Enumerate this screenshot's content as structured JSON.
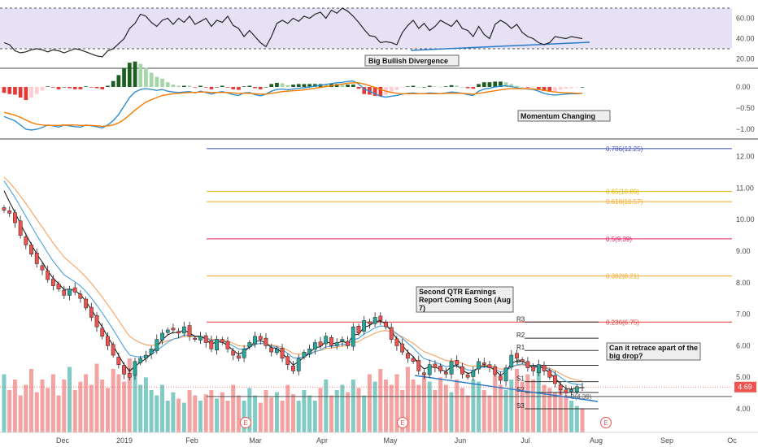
{
  "chart_data": {
    "type": "line",
    "x_axis": {
      "labels": [
        "Dec",
        "2019",
        "Feb",
        "Mar",
        "Apr",
        "May",
        "Jun",
        "Jul",
        "Aug",
        "Sep",
        "Oc"
      ]
    },
    "colors": {
      "up": "#26a69a",
      "down": "#ef5350",
      "rsi_band": "#e7e1f6",
      "rsi_line": "#222222",
      "macd_line": "#2f8fd1",
      "signal_line": "#f57c00",
      "hist_pos_strong": "#1b5e20",
      "hist_pos_weak": "#a5d6a7",
      "hist_neg_strong": "#e53935",
      "hist_neg_weak": "#ffcdd2",
      "ma_fast": "#111111",
      "ma_mid": "#4aa3df",
      "ma_slow": "#f4a261",
      "divergence_line": "#2979c9",
      "price_tag": "#ef5350"
    },
    "rsi_pane": {
      "ticks": [
        "60.00",
        "40.00",
        "20.00"
      ],
      "upper_band": 70,
      "lower_band": 30,
      "values": [
        36,
        34,
        28,
        26,
        27,
        29,
        30,
        29,
        27,
        29,
        28,
        26,
        28,
        30,
        29,
        27,
        25,
        23,
        22,
        28,
        30,
        35,
        40,
        50,
        55,
        64,
        62,
        56,
        52,
        58,
        60,
        54,
        60,
        56,
        62,
        54,
        57,
        60,
        52,
        58,
        56,
        62,
        53,
        50,
        42,
        48,
        42,
        36,
        32,
        42,
        55,
        58,
        55,
        60,
        57,
        62,
        60,
        64,
        66,
        60,
        68,
        65,
        70,
        67,
        62,
        56,
        49,
        43,
        42,
        36,
        37,
        36,
        34,
        46,
        53,
        58,
        50,
        55,
        48,
        52,
        58,
        55,
        52,
        58,
        50,
        48,
        42,
        52,
        44,
        40,
        54,
        58,
        55,
        50,
        54,
        46,
        42,
        40,
        36,
        34,
        36,
        42,
        41,
        40,
        42,
        41,
        40
      ]
    },
    "macd_pane": {
      "ticks": [
        "0.00",
        "−0.50",
        "−1.00"
      ],
      "macd": [
        -0.7,
        -0.75,
        -0.8,
        -0.9,
        -1.0,
        -1.02,
        -1.0,
        -0.96,
        -0.9,
        -0.92,
        -0.95,
        -0.9,
        -0.92,
        -0.94,
        -0.95,
        -0.9,
        -0.92,
        -0.94,
        -0.97,
        -0.9,
        -0.8,
        -0.65,
        -0.45,
        -0.25,
        -0.12,
        -0.06,
        -0.04,
        -0.06,
        -0.08,
        -0.06,
        -0.1,
        -0.12,
        -0.13,
        -0.12,
        -0.11,
        -0.14,
        -0.1,
        -0.13,
        -0.17,
        -0.13,
        -0.11,
        -0.14,
        -0.18,
        -0.2,
        -0.14,
        -0.13,
        -0.18,
        -0.21,
        -0.17,
        -0.1,
        -0.06,
        -0.05,
        -0.07,
        -0.05,
        -0.03,
        -0.02,
        -0.0,
        0.02,
        0.04,
        0.06,
        0.08,
        0.1,
        0.11,
        0.13,
        0.14,
        0.07,
        -0.05,
        -0.1,
        -0.16,
        -0.22,
        -0.24,
        -0.22,
        -0.2,
        -0.17,
        -0.15,
        -0.14,
        -0.16,
        -0.16,
        -0.14,
        -0.15,
        -0.16,
        -0.14,
        -0.12,
        -0.13,
        -0.15,
        -0.18,
        -0.2,
        -0.1,
        -0.05,
        -0.03,
        -0.0,
        0.02,
        0.03,
        0.01,
        -0.02,
        -0.04,
        -0.05,
        -0.06,
        -0.1,
        -0.15,
        -0.18,
        -0.19,
        -0.18,
        -0.17,
        -0.16,
        -0.16,
        -0.15
      ],
      "signal": [
        -0.6,
        -0.63,
        -0.67,
        -0.72,
        -0.78,
        -0.84,
        -0.88,
        -0.9,
        -0.91,
        -0.91,
        -0.91,
        -0.9,
        -0.9,
        -0.9,
        -0.91,
        -0.91,
        -0.91,
        -0.92,
        -0.93,
        -0.92,
        -0.9,
        -0.85,
        -0.77,
        -0.66,
        -0.55,
        -0.45,
        -0.36,
        -0.3,
        -0.25,
        -0.2,
        -0.18,
        -0.16,
        -0.15,
        -0.14,
        -0.13,
        -0.13,
        -0.12,
        -0.12,
        -0.13,
        -0.13,
        -0.13,
        -0.13,
        -0.14,
        -0.15,
        -0.15,
        -0.15,
        -0.16,
        -0.17,
        -0.17,
        -0.15,
        -0.13,
        -0.11,
        -0.1,
        -0.09,
        -0.08,
        -0.07,
        -0.05,
        -0.03,
        -0.01,
        0.01,
        0.03,
        0.05,
        0.07,
        0.09,
        0.1,
        0.1,
        0.07,
        0.03,
        -0.01,
        -0.06,
        -0.1,
        -0.13,
        -0.15,
        -0.16,
        -0.16,
        -0.16,
        -0.16,
        -0.16,
        -0.16,
        -0.16,
        -0.16,
        -0.15,
        -0.15,
        -0.15,
        -0.15,
        -0.16,
        -0.17,
        -0.15,
        -0.13,
        -0.11,
        -0.09,
        -0.07,
        -0.05,
        -0.04,
        -0.04,
        -0.04,
        -0.04,
        -0.05,
        -0.06,
        -0.08,
        -0.1,
        -0.12,
        -0.13,
        -0.14,
        -0.14,
        -0.15,
        -0.15
      ]
    },
    "price_pane": {
      "ticks": [
        "12.00",
        "11.00",
        "10.00",
        "9.00",
        "8.00",
        "7.00",
        "6.00",
        "5.00",
        "4.00"
      ],
      "last_price_label": "4.69",
      "close": [
        10.3,
        10.2,
        9.9,
        9.5,
        9.2,
        8.9,
        8.6,
        8.4,
        8.1,
        7.9,
        7.8,
        7.6,
        7.8,
        7.7,
        7.5,
        7.2,
        6.9,
        6.6,
        6.3,
        6.0,
        5.7,
        5.4,
        5.1,
        5.0,
        5.5,
        5.6,
        5.7,
        5.9,
        6.2,
        6.4,
        6.5,
        6.5,
        6.4,
        6.6,
        6.3,
        6.2,
        6.3,
        6.1,
        5.9,
        6.2,
        6.1,
        5.9,
        5.7,
        5.6,
        5.9,
        6.1,
        6.3,
        6.2,
        6.0,
        5.8,
        5.9,
        5.6,
        5.4,
        5.2,
        5.6,
        5.8,
        5.9,
        6.1,
        6.0,
        6.3,
        6.0,
        6.1,
        6.2,
        6.0,
        6.6,
        6.4,
        6.8,
        6.7,
        6.9,
        6.8,
        6.6,
        6.2,
        6.0,
        5.8,
        5.6,
        5.5,
        5.2,
        5.1,
        5.4,
        5.3,
        5.2,
        5.1,
        5.5,
        5.4,
        5.1,
        5.0,
        5.2,
        5.5,
        5.4,
        5.3,
        5.1,
        4.9,
        5.3,
        5.7,
        5.6,
        5.5,
        5.3,
        5.2,
        5.4,
        5.2,
        5.0,
        4.8,
        4.6,
        4.5,
        4.6,
        4.7,
        4.69
      ],
      "volume": [
        0.55,
        0.4,
        0.5,
        0.35,
        0.45,
        0.6,
        0.38,
        0.5,
        0.42,
        0.55,
        0.35,
        0.5,
        0.62,
        0.4,
        0.48,
        0.55,
        0.45,
        0.65,
        0.5,
        0.42,
        0.6,
        0.55,
        0.48,
        0.7,
        0.55,
        0.45,
        0.52,
        0.4,
        0.35,
        0.45,
        0.3,
        0.38,
        0.32,
        0.28,
        0.4,
        0.35,
        0.3,
        0.36,
        0.4,
        0.32,
        0.38,
        0.3,
        0.45,
        0.35,
        0.3,
        0.42,
        0.35,
        0.28,
        0.4,
        0.33,
        0.38,
        0.3,
        0.45,
        0.36,
        0.3,
        0.4,
        0.35,
        0.3,
        0.42,
        0.5,
        0.35,
        0.4,
        0.45,
        0.38,
        0.5,
        0.42,
        0.35,
        0.55,
        0.48,
        0.6,
        0.5,
        0.45,
        0.55,
        0.4,
        0.62,
        0.5,
        0.45,
        0.55,
        0.48,
        0.4,
        0.52,
        0.45,
        0.38,
        0.5,
        0.42,
        0.35,
        0.5,
        0.48,
        0.4,
        0.35,
        0.55,
        0.45,
        0.4,
        0.5,
        0.6,
        0.48,
        0.55,
        0.5,
        0.62,
        0.45,
        0.42,
        0.38,
        0.4,
        0.35,
        0.3,
        0.25,
        0.22
      ],
      "fib_levels": [
        {
          "label": "0.786(12.25)",
          "value": 12.25,
          "color": "#3f51b5"
        },
        {
          "label": "0.65(10.89)",
          "value": 10.89,
          "color": "#e0b400"
        },
        {
          "label": "0.618(10.57)",
          "value": 10.57,
          "color": "#f5a623"
        },
        {
          "label": "0.5(9.39)",
          "value": 9.39,
          "color": "#e91e63"
        },
        {
          "label": "0.382(8.21)",
          "value": 8.21,
          "color": "#f5a623"
        },
        {
          "label": "0.236(6.75)",
          "value": 6.75,
          "color": "#e53935"
        },
        {
          "label": "0(4.39)",
          "value": 4.39,
          "color": "#555555"
        }
      ],
      "pivots": [
        {
          "label": "R3",
          "value": 6.75
        },
        {
          "label": "R2",
          "value": 6.24
        },
        {
          "label": "R1",
          "value": 5.85
        },
        {
          "label": "P",
          "value": 5.38
        },
        {
          "label": "S1",
          "value": 4.86
        },
        {
          "label": "S2",
          "value": 4.52
        },
        {
          "label": "S3",
          "value": 4.0
        }
      ]
    },
    "earnings_marker": "E",
    "annotations": [
      {
        "id": "divergence",
        "text": "Big Bullish Divergence"
      },
      {
        "id": "momentum",
        "text": "Momentum Changing"
      },
      {
        "id": "earnings",
        "lines": [
          "Second QTR Earnings",
          "Report Coming Soon (Aug",
          "7)"
        ]
      },
      {
        "id": "retrace",
        "lines": [
          "Can it retrace apart of the",
          "big drop?"
        ]
      }
    ]
  }
}
